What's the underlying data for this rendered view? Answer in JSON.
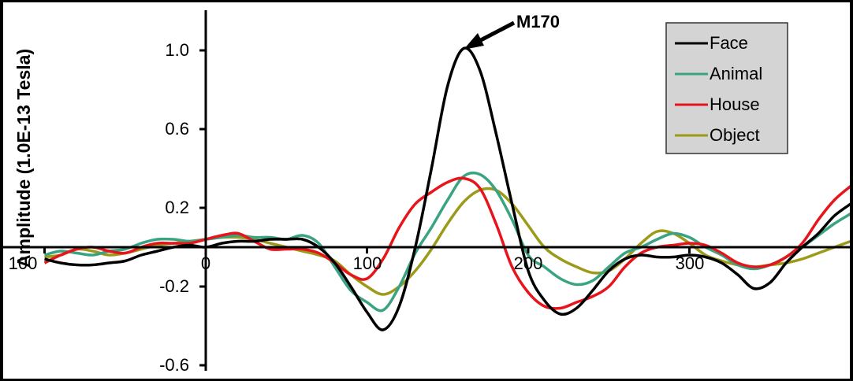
{
  "chart_data": {
    "type": "line",
    "title": "",
    "xlabel": "",
    "ylabel": "Amplitude (1.0E-13 Tesla)",
    "xlim": [
      -100,
      400
    ],
    "ylim": [
      -0.6,
      1.2
    ],
    "x_ticks": [
      -100,
      0,
      100,
      200,
      300
    ],
    "x_tick_labels": [
      "100",
      "0",
      "100",
      "200",
      "300"
    ],
    "y_ticks": [
      1.0,
      0.6,
      0.2,
      -0.2,
      -0.6
    ],
    "y_tick_labels": [
      "1.0",
      "0.6",
      "0.2",
      "-0.2",
      "-0.6"
    ],
    "annotations": [
      {
        "text": "M170",
        "x": 160,
        "y": 1.01
      }
    ],
    "legend_position": "top-right",
    "x": [
      -100,
      -90,
      -80,
      -70,
      -60,
      -50,
      -40,
      -30,
      -20,
      -10,
      0,
      10,
      20,
      30,
      40,
      50,
      60,
      70,
      80,
      90,
      100,
      110,
      120,
      130,
      140,
      150,
      160,
      170,
      180,
      190,
      200,
      210,
      220,
      230,
      240,
      250,
      260,
      270,
      280,
      290,
      300,
      310,
      320,
      330,
      340,
      350,
      360,
      370,
      380,
      390,
      400
    ],
    "series": [
      {
        "name": "Face",
        "color": "#000000",
        "values": [
          -0.06,
          -0.08,
          -0.09,
          -0.09,
          -0.08,
          -0.07,
          -0.04,
          -0.02,
          0.0,
          0.01,
          0.0,
          0.02,
          0.03,
          0.03,
          0.04,
          0.04,
          0.04,
          0.0,
          -0.08,
          -0.2,
          -0.33,
          -0.42,
          -0.3,
          0.0,
          0.4,
          0.82,
          1.01,
          0.9,
          0.58,
          0.22,
          -0.12,
          -0.27,
          -0.34,
          -0.31,
          -0.22,
          -0.12,
          -0.06,
          -0.04,
          -0.05,
          -0.05,
          -0.04,
          -0.05,
          -0.08,
          -0.14,
          -0.21,
          -0.18,
          -0.08,
          0.0,
          0.07,
          0.16,
          0.22
        ]
      },
      {
        "name": "Animal",
        "color": "#3aa383",
        "values": [
          -0.04,
          -0.02,
          -0.03,
          -0.04,
          -0.02,
          -0.01,
          0.02,
          0.04,
          0.04,
          0.03,
          0.04,
          0.05,
          0.06,
          0.05,
          0.05,
          0.04,
          0.06,
          0.02,
          -0.1,
          -0.22,
          -0.28,
          -0.32,
          -0.2,
          -0.03,
          0.1,
          0.24,
          0.36,
          0.37,
          0.29,
          0.14,
          -0.04,
          -0.1,
          -0.16,
          -0.19,
          -0.17,
          -0.1,
          -0.03,
          0.0,
          0.04,
          0.07,
          0.05,
          0.0,
          -0.04,
          -0.09,
          -0.11,
          -0.09,
          -0.05,
          0.0,
          0.06,
          0.12,
          0.17
        ]
      },
      {
        "name": "House",
        "color": "#e8141c",
        "values": [
          -0.08,
          -0.04,
          -0.01,
          0.0,
          -0.02,
          -0.03,
          0.0,
          0.02,
          0.02,
          0.02,
          0.04,
          0.06,
          0.07,
          0.03,
          -0.01,
          -0.01,
          -0.01,
          -0.03,
          -0.08,
          -0.14,
          -0.16,
          -0.06,
          0.1,
          0.22,
          0.28,
          0.33,
          0.35,
          0.3,
          0.12,
          -0.1,
          -0.23,
          -0.3,
          -0.31,
          -0.28,
          -0.25,
          -0.2,
          -0.1,
          -0.03,
          0.0,
          0.01,
          0.02,
          0.01,
          -0.03,
          -0.08,
          -0.1,
          -0.09,
          -0.05,
          0.02,
          0.14,
          0.24,
          0.31
        ]
      },
      {
        "name": "Object",
        "color": "#9c9a1a",
        "values": [
          -0.05,
          -0.04,
          -0.01,
          -0.02,
          -0.04,
          -0.03,
          -0.01,
          0.01,
          0.02,
          0.03,
          0.04,
          0.05,
          0.05,
          0.04,
          0.02,
          0.0,
          -0.02,
          -0.04,
          -0.07,
          -0.14,
          -0.2,
          -0.24,
          -0.2,
          -0.12,
          -0.01,
          0.12,
          0.23,
          0.29,
          0.29,
          0.22,
          0.11,
          0.0,
          -0.06,
          -0.1,
          -0.13,
          -0.12,
          -0.06,
          0.02,
          0.08,
          0.07,
          0.02,
          -0.04,
          -0.07,
          -0.09,
          -0.1,
          -0.09,
          -0.08,
          -0.06,
          -0.03,
          0.0,
          0.03
        ]
      }
    ]
  }
}
